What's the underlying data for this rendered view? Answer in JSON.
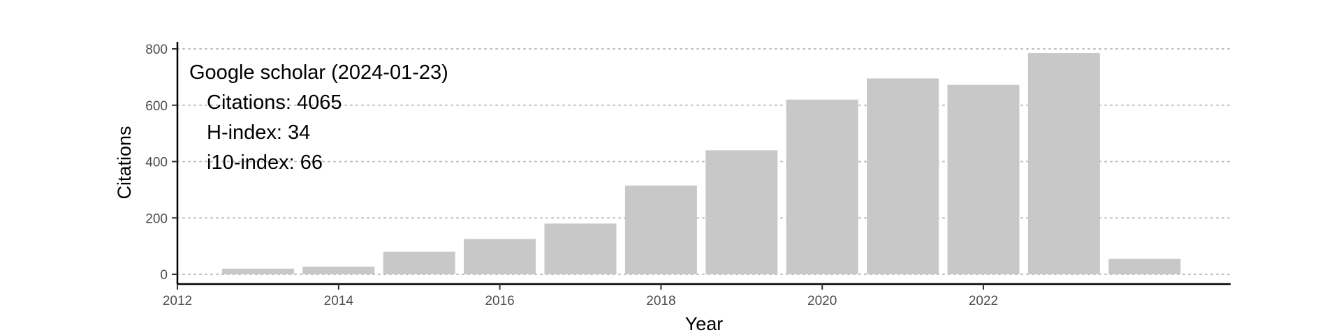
{
  "chart_data": {
    "type": "bar",
    "x": [
      2013,
      2014,
      2015,
      2016,
      2017,
      2018,
      2019,
      2020,
      2021,
      2022,
      2023,
      2024
    ],
    "values": [
      20,
      27,
      80,
      125,
      180,
      315,
      440,
      620,
      695,
      672,
      785,
      55
    ],
    "xlabel": "Year",
    "ylabel": "Citations",
    "xlim": [
      2012,
      2025
    ],
    "ylim": [
      0,
      800
    ],
    "x_ticks": [
      "2012",
      "2014",
      "2016",
      "2018",
      "2020",
      "2022"
    ],
    "y_ticks": [
      "0",
      "200",
      "400",
      "600",
      "800"
    ],
    "grid": "horizontal-dotted",
    "bar_color": "#c8c8c8",
    "annotation": {
      "title": "Google scholar (2024-01-23)",
      "lines": [
        "Citations: 4065",
        "H-index: 34",
        "i10-index: 66"
      ]
    }
  }
}
